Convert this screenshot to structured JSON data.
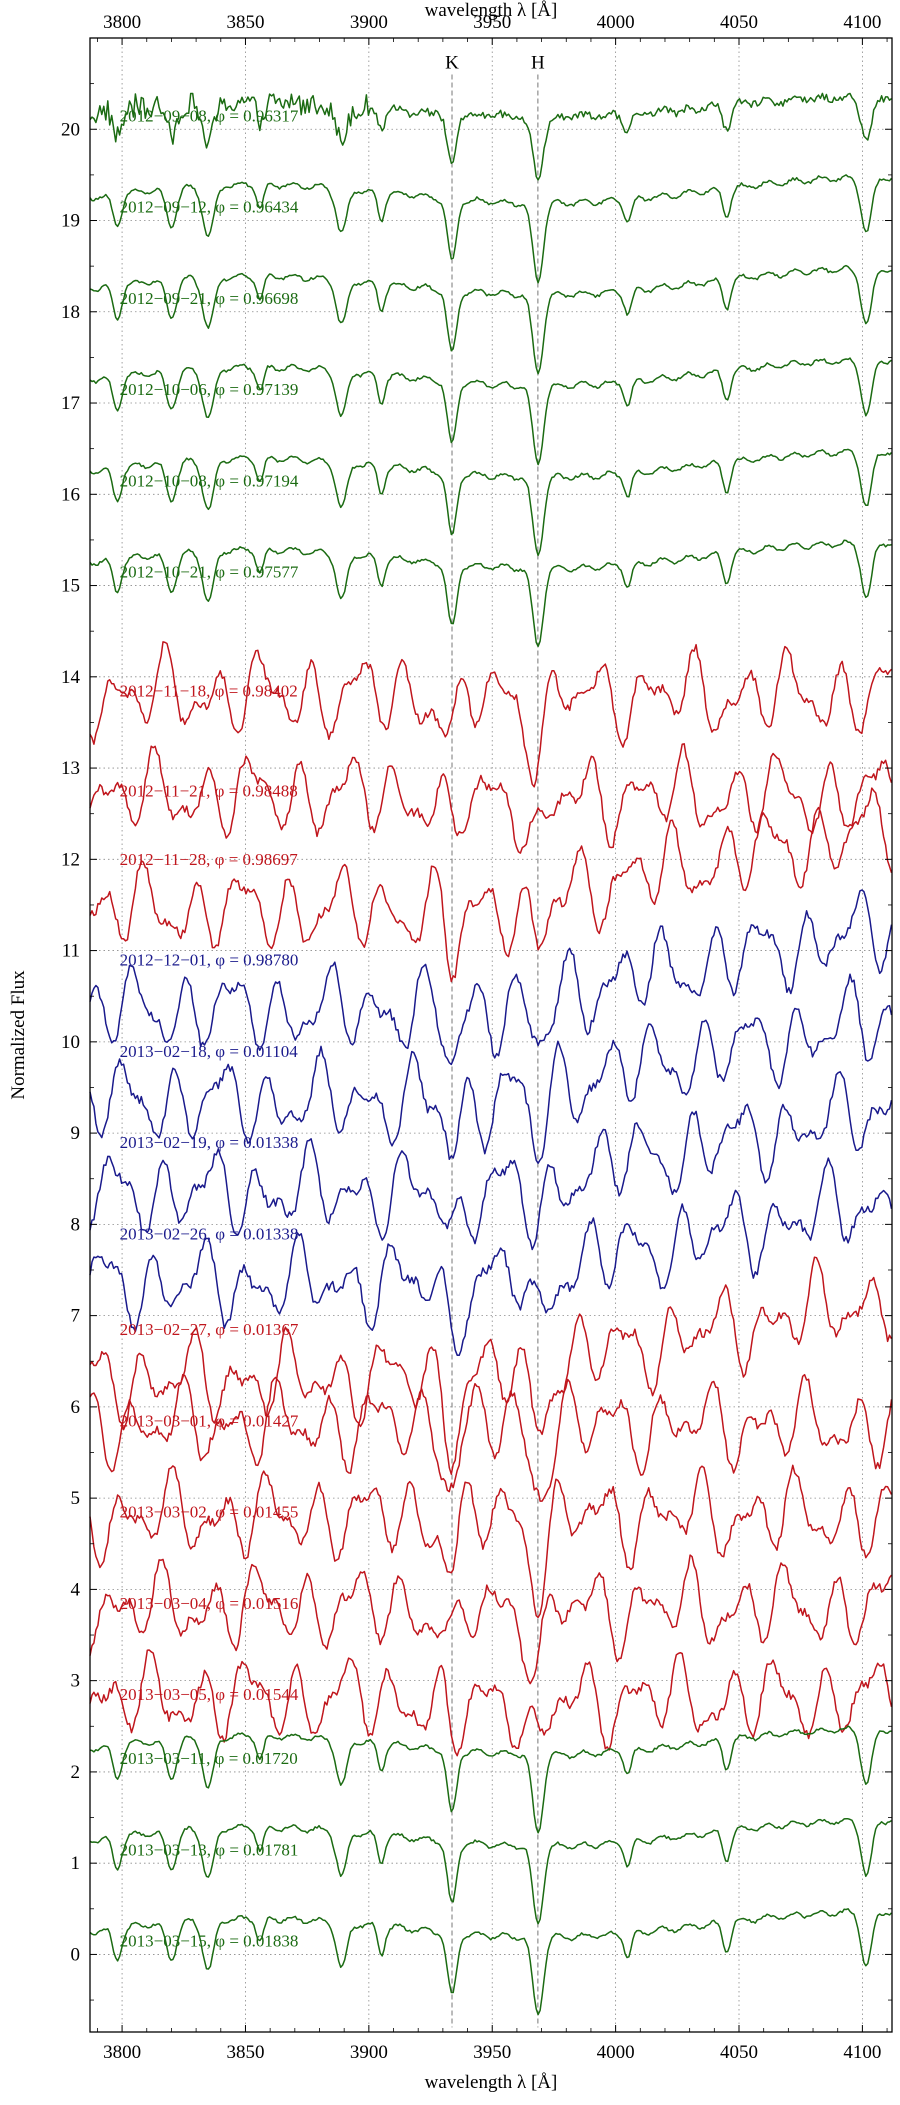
{
  "chart_data": {
    "type": "line",
    "title": "",
    "xlabel": "wavelength λ [Å]",
    "ylabel": "Normalized Flux",
    "xlim": [
      3787,
      4112
    ],
    "ylim": [
      -0.85,
      21.0
    ],
    "x_ticks": [
      3800,
      3850,
      3900,
      3950,
      4000,
      4050,
      4100
    ],
    "x_tick_labels": [
      "3800",
      "3850",
      "3900",
      "3950",
      "4000",
      "4050",
      "4100"
    ],
    "x_ticks_top": [
      3800,
      3850,
      3900,
      3950,
      4000,
      4050,
      4100
    ],
    "y_ticks": [
      0,
      1,
      2,
      3,
      4,
      5,
      6,
      7,
      8,
      9,
      10,
      11,
      12,
      13,
      14,
      15,
      16,
      17,
      18,
      19,
      20
    ],
    "y_tick_labels": [
      "0",
      "1",
      "2",
      "3",
      "4",
      "5",
      "6",
      "7",
      "8",
      "9",
      "10",
      "11",
      "12",
      "13",
      "14",
      "15",
      "16",
      "17",
      "18",
      "19",
      "20"
    ],
    "grid": true,
    "reference_lines": [
      {
        "label": "K",
        "x": 3933.7
      },
      {
        "label": "H",
        "x": 3968.5
      }
    ],
    "colors": {
      "green": "#1b6b12",
      "red": "#c0161d",
      "blue": "#1a1a8c",
      "grid": "#8a8a8a",
      "marker": "#777777"
    },
    "series": [
      {
        "label": "2012−09−08, φ = 0.96317",
        "offset": 19.9,
        "color": "green",
        "style": "noisy-early"
      },
      {
        "label": "2012−09−12, φ = 0.96434",
        "offset": 18.9,
        "color": "green",
        "style": "smooth"
      },
      {
        "label": "2012−09−21, φ = 0.96698",
        "offset": 17.9,
        "color": "green",
        "style": "smooth"
      },
      {
        "label": "2012−10−06, φ = 0.97139",
        "offset": 16.9,
        "color": "green",
        "style": "smooth"
      },
      {
        "label": "2012−10−08, φ = 0.97194",
        "offset": 15.9,
        "color": "green",
        "style": "smooth"
      },
      {
        "label": "2012−10−21, φ = 0.97577",
        "offset": 14.9,
        "color": "green",
        "style": "smooth"
      },
      {
        "label": "2012−11−18, φ = 0.98402",
        "offset": 13.6,
        "color": "red",
        "style": "wavy"
      },
      {
        "label": "2012−11−21, φ = 0.98488",
        "offset": 12.5,
        "color": "red",
        "style": "wavy"
      },
      {
        "label": "2012−11−28, φ = 0.98697",
        "offset": 11.75,
        "color": "red",
        "style": "wavy-rising"
      },
      {
        "label": "2012−12−01, φ = 0.98780",
        "offset": 10.65,
        "color": "blue",
        "style": "wavy-rising"
      },
      {
        "label": "2013−02−18, φ = 0.01104",
        "offset": 9.65,
        "color": "blue",
        "style": "wavy-rising"
      },
      {
        "label": "2013−02−19, φ = 0.01338",
        "offset": 8.65,
        "color": "blue",
        "style": "wavy-rising"
      },
      {
        "label": "2013−02−26, φ = 0.01338",
        "offset": 7.65,
        "color": "blue",
        "style": "wavy-rising"
      },
      {
        "label": "2013−02−27, φ = 0.01367",
        "offset": 6.6,
        "color": "red",
        "style": "wavy-rising"
      },
      {
        "label": "2013−03−01, φ = 0.01427",
        "offset": 5.6,
        "color": "red",
        "style": "wavy"
      },
      {
        "label": "2013−03−02, φ = 0.01455",
        "offset": 4.6,
        "color": "red",
        "style": "wavy"
      },
      {
        "label": "2013−03−04, φ = 0.01516",
        "offset": 3.6,
        "color": "red",
        "style": "wavy"
      },
      {
        "label": "2013−03−05, φ = 0.01544",
        "offset": 2.6,
        "color": "red",
        "style": "wavy"
      },
      {
        "label": "2013−03−11, φ = 0.01720",
        "offset": 1.9,
        "color": "green",
        "style": "smooth"
      },
      {
        "label": "2013−03−13, φ = 0.01781",
        "offset": 0.9,
        "color": "green",
        "style": "smooth"
      },
      {
        "label": "2013−03−15, φ = 0.01838",
        "offset": -0.1,
        "color": "green",
        "style": "smooth"
      }
    ]
  }
}
